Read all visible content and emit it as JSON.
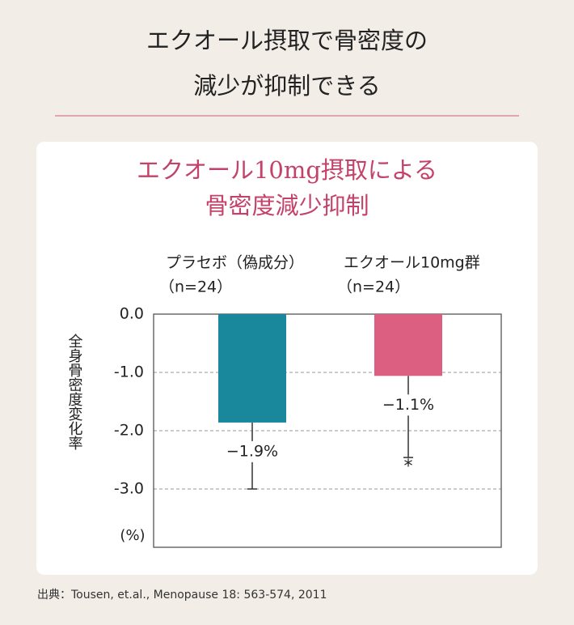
{
  "header": {
    "title_lines": [
      "エクオール摂取で骨密度の",
      "減少が抑制できる"
    ]
  },
  "chart_data": {
    "type": "bar",
    "title_lines": [
      "エクオール10mg摂取による",
      "骨密度減少抑制"
    ],
    "categories": [
      "プラセボ（偽成分）",
      "エクオール10mg群"
    ],
    "category_notes": [
      "（n=24）",
      "（n=24）"
    ],
    "values": [
      -1.86,
      -1.06
    ],
    "value_labels": [
      "−1.9%",
      "−1.1%"
    ],
    "errors": [
      1.14,
      1.4
    ],
    "significance": [
      null,
      "*"
    ],
    "colors": [
      "#1a889c",
      "#dc5e80"
    ],
    "y_label": "全身骨密度変化率",
    "y_unit": "(%)",
    "ylim": [
      -4,
      0
    ],
    "yticks": [
      {
        "value": 0,
        "label": "0.0"
      },
      {
        "value": -1,
        "label": "-1.0"
      },
      {
        "value": -2,
        "label": "-2.0"
      },
      {
        "value": -3,
        "label": "-3.0"
      }
    ],
    "grid": true
  },
  "footer": {
    "source": "出典：Tousen, et.al., Menopause 18: 563-574, 2011"
  }
}
